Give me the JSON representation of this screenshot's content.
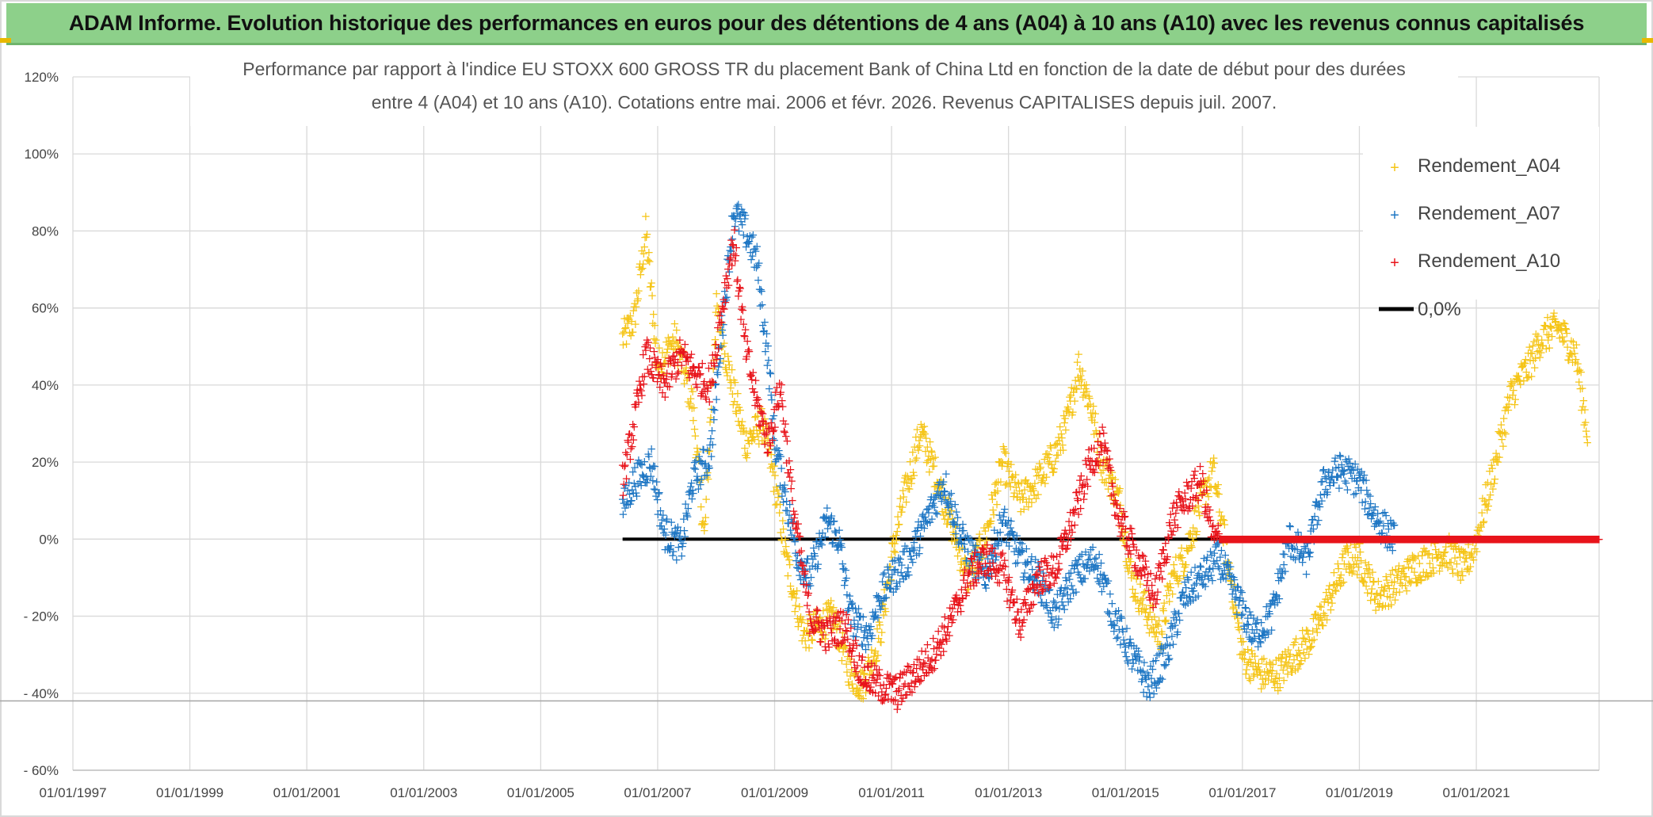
{
  "header": {
    "title": "ADAM Informe. Evolution historique des performances en euros pour des détentions de 4 ans (A04) à 10 ans (A10) avec les revenus connus capitalisés"
  },
  "colors": {
    "banner_bg": "#8dd08a",
    "A04": "#f5c518",
    "A07": "#1f77c4",
    "A10": "#e8141b",
    "zero": "#000000",
    "grid": "#d9d9d9"
  },
  "chart_data": {
    "type": "scatter",
    "title_lines": [
      "Performance par rapport à l'indice EU STOXX 600 GROSS TR  du placement Bank of China Ltd en fonction de la date de début pour des durées",
      "entre 4 (A04) et 10 ans (A10). Cotations entre mai. 2006 et févr. 2026. Revenus CAPITALISES depuis juil. 2007."
    ],
    "x_tick_labels": [
      "01/01/1997",
      "01/01/1999",
      "01/01/2001",
      "01/01/2003",
      "01/01/2005",
      "01/01/2007",
      "01/01/2009",
      "01/01/2011",
      "01/01/2013",
      "01/01/2015",
      "01/01/2017",
      "01/01/2019",
      "01/01/2021"
    ],
    "x_tick_years": [
      1997,
      1999,
      2001,
      2003,
      2005,
      2007,
      2009,
      2011,
      2013,
      2015,
      2017,
      2019,
      2021
    ],
    "xlim": [
      1997,
      2023.1
    ],
    "y_tick_labels": [
      "120%",
      "100%",
      "80%",
      "60%",
      "40%",
      "20%",
      "0%",
      "- 20%",
      "- 40%",
      "- 60%"
    ],
    "y_tick_values": [
      120,
      100,
      80,
      60,
      40,
      20,
      0,
      -20,
      -40,
      -60
    ],
    "ylim": [
      -60,
      120
    ],
    "legend": {
      "position": "top-right",
      "items": [
        "Rendement_A04",
        "Rendement_A07",
        "Rendement_A10",
        "0,0%"
      ]
    },
    "series": [
      {
        "name": "Rendement_A04",
        "anchors": [
          [
            2006.4,
            52
          ],
          [
            2006.6,
            57
          ],
          [
            2006.8,
            80
          ],
          [
            2007.0,
            45
          ],
          [
            2007.3,
            52
          ],
          [
            2007.6,
            35
          ],
          [
            2007.8,
            0
          ],
          [
            2008.0,
            60
          ],
          [
            2008.3,
            38
          ],
          [
            2008.5,
            25
          ],
          [
            2008.8,
            30
          ],
          [
            2009.0,
            15
          ],
          [
            2009.2,
            -5
          ],
          [
            2009.5,
            -25
          ],
          [
            2009.8,
            -22
          ],
          [
            2010.0,
            -20
          ],
          [
            2010.3,
            -35
          ],
          [
            2010.5,
            -38
          ],
          [
            2010.8,
            -25
          ],
          [
            2011.0,
            -5
          ],
          [
            2011.2,
            10
          ],
          [
            2011.5,
            28
          ],
          [
            2011.8,
            15
          ],
          [
            2012.0,
            5
          ],
          [
            2012.3,
            -10
          ],
          [
            2012.6,
            0
          ],
          [
            2012.9,
            20
          ],
          [
            2013.2,
            10
          ],
          [
            2013.5,
            15
          ],
          [
            2013.8,
            22
          ],
          [
            2014.0,
            30
          ],
          [
            2014.2,
            45
          ],
          [
            2014.4,
            35
          ],
          [
            2014.6,
            20
          ],
          [
            2014.9,
            10
          ],
          [
            2015.1,
            -10
          ],
          [
            2015.4,
            -20
          ],
          [
            2015.6,
            -25
          ],
          [
            2015.8,
            -10
          ],
          [
            2016.0,
            -5
          ],
          [
            2016.3,
            10
          ],
          [
            2016.5,
            18
          ],
          [
            2016.8,
            -10
          ],
          [
            2017.0,
            -30
          ],
          [
            2017.3,
            -35
          ],
          [
            2017.6,
            -35
          ],
          [
            2017.9,
            -30
          ],
          [
            2018.2,
            -25
          ],
          [
            2018.5,
            -15
          ],
          [
            2018.8,
            -5
          ],
          [
            2019.0,
            -5
          ],
          [
            2019.3,
            -15
          ],
          [
            2019.6,
            -12
          ],
          [
            2019.9,
            -8
          ],
          [
            2020.2,
            -5
          ],
          [
            2020.5,
            -3
          ],
          [
            2020.8,
            -8
          ],
          [
            2021.0,
            0
          ],
          [
            2021.3,
            18
          ],
          [
            2021.6,
            38
          ],
          [
            2021.9,
            45
          ],
          [
            2022.1,
            52
          ],
          [
            2022.4,
            55
          ],
          [
            2022.7,
            48
          ],
          [
            2022.9,
            28
          ]
        ]
      },
      {
        "name": "Rendement_A07",
        "anchors": [
          [
            2006.4,
            8
          ],
          [
            2006.6,
            15
          ],
          [
            2006.9,
            20
          ],
          [
            2007.1,
            2
          ],
          [
            2007.4,
            -2
          ],
          [
            2007.6,
            15
          ],
          [
            2007.9,
            22
          ],
          [
            2008.1,
            55
          ],
          [
            2008.3,
            85
          ],
          [
            2008.5,
            80
          ],
          [
            2008.7,
            72
          ],
          [
            2008.9,
            45
          ],
          [
            2009.0,
            25
          ],
          [
            2009.2,
            10
          ],
          [
            2009.4,
            -5
          ],
          [
            2009.6,
            -10
          ],
          [
            2009.9,
            5
          ],
          [
            2010.1,
            0
          ],
          [
            2010.3,
            -20
          ],
          [
            2010.6,
            -25
          ],
          [
            2010.8,
            -15
          ],
          [
            2011.0,
            -10
          ],
          [
            2011.3,
            -5
          ],
          [
            2011.6,
            5
          ],
          [
            2011.9,
            15
          ],
          [
            2012.2,
            0
          ],
          [
            2012.6,
            -10
          ],
          [
            2012.9,
            5
          ],
          [
            2013.2,
            -5
          ],
          [
            2013.5,
            -10
          ],
          [
            2013.8,
            -20
          ],
          [
            2014.1,
            -10
          ],
          [
            2014.5,
            -5
          ],
          [
            2014.8,
            -20
          ],
          [
            2015.1,
            -30
          ],
          [
            2015.4,
            -38
          ],
          [
            2015.7,
            -30
          ],
          [
            2016.0,
            -15
          ],
          [
            2016.3,
            -10
          ],
          [
            2016.6,
            -5
          ],
          [
            2016.9,
            -15
          ],
          [
            2017.2,
            -25
          ],
          [
            2017.5,
            -20
          ],
          [
            2017.8,
            0
          ],
          [
            2018.1,
            -5
          ],
          [
            2018.4,
            15
          ],
          [
            2018.7,
            18
          ],
          [
            2019.0,
            15
          ],
          [
            2019.3,
            5
          ],
          [
            2019.6,
            0
          ]
        ]
      },
      {
        "name": "Rendement_A10",
        "anchors": [
          [
            2006.4,
            15
          ],
          [
            2006.6,
            30
          ],
          [
            2006.8,
            48
          ],
          [
            2007.1,
            40
          ],
          [
            2007.4,
            48
          ],
          [
            2007.7,
            42
          ],
          [
            2007.9,
            40
          ],
          [
            2008.1,
            60
          ],
          [
            2008.3,
            78
          ],
          [
            2008.5,
            50
          ],
          [
            2008.7,
            35
          ],
          [
            2008.9,
            25
          ],
          [
            2009.1,
            40
          ],
          [
            2009.3,
            10
          ],
          [
            2009.6,
            -20
          ],
          [
            2009.9,
            -25
          ],
          [
            2010.2,
            -22
          ],
          [
            2010.5,
            -35
          ],
          [
            2010.8,
            -38
          ],
          [
            2011.1,
            -40
          ],
          [
            2011.4,
            -35
          ],
          [
            2011.7,
            -30
          ],
          [
            2012.0,
            -22
          ],
          [
            2012.3,
            -10
          ],
          [
            2012.6,
            -5
          ],
          [
            2012.9,
            -8
          ],
          [
            2013.2,
            -22
          ],
          [
            2013.5,
            -10
          ],
          [
            2013.8,
            -8
          ],
          [
            2014.1,
            5
          ],
          [
            2014.4,
            20
          ],
          [
            2014.6,
            25
          ],
          [
            2014.9,
            5
          ],
          [
            2015.2,
            -5
          ],
          [
            2015.5,
            -15
          ],
          [
            2015.8,
            5
          ],
          [
            2016.0,
            10
          ],
          [
            2016.3,
            15
          ],
          [
            2016.5,
            0
          ],
          [
            2016.8,
            0
          ],
          [
            2017.5,
            0
          ],
          [
            2019.0,
            0
          ],
          [
            2021.0,
            0
          ],
          [
            2023.1,
            0
          ]
        ]
      },
      {
        "name": "0,0%",
        "line": [
          [
            2006.4,
            0
          ],
          [
            2023.1,
            0
          ]
        ]
      }
    ]
  }
}
